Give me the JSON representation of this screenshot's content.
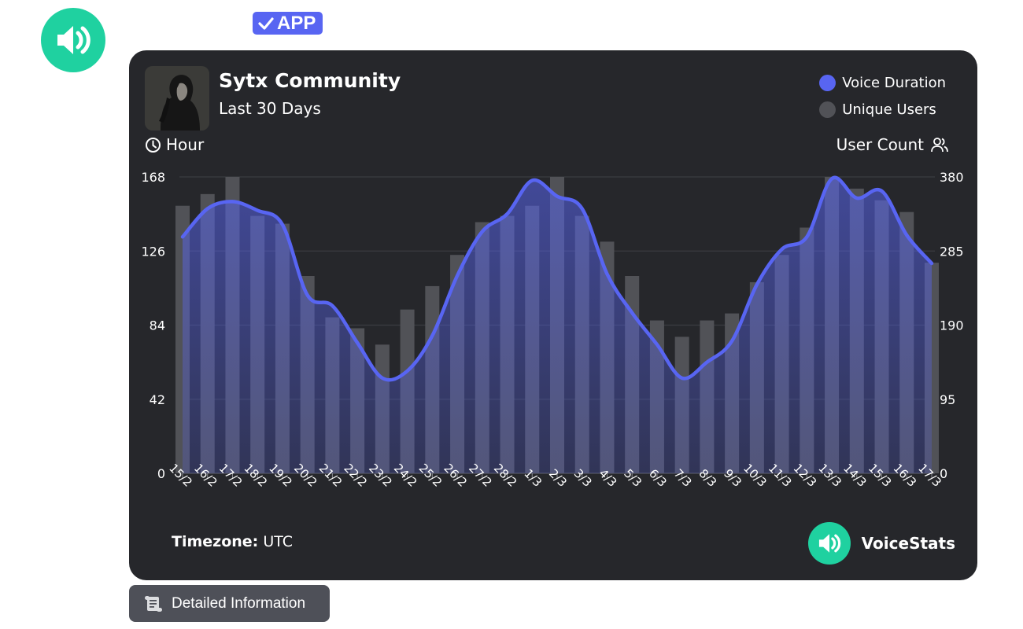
{
  "message": {
    "app_badge": "APP"
  },
  "card": {
    "title": "Sytx Community",
    "subtitle": "Last 30 Days",
    "timezone_label": "Timezone:",
    "timezone_value": "UTC",
    "brand_name": "VoiceStats"
  },
  "actions": {
    "detail_button": "Detailed Information"
  },
  "colors": {
    "voice": "#5865f2",
    "users": "#515257",
    "brand": "#1fd1a0",
    "card_bg": "#26272b"
  },
  "chart_data": {
    "type": "bar",
    "categories": [
      "15/2",
      "16/2",
      "17/2",
      "18/2",
      "19/2",
      "20/2",
      "21/2",
      "22/2",
      "23/2",
      "24/2",
      "25/2",
      "26/2",
      "27/2",
      "28/2",
      "1/3",
      "2/3",
      "3/3",
      "4/3",
      "5/3",
      "6/3",
      "7/3",
      "8/3",
      "9/3",
      "10/3",
      "11/3",
      "12/3",
      "13/3",
      "14/3",
      "15/3",
      "16/3",
      "17/3"
    ],
    "y_left_label": "Hour",
    "y_right_label": "User Count",
    "y_left_ticks": [
      0,
      42,
      84,
      126,
      168
    ],
    "y_right_ticks": [
      0,
      95,
      190,
      285,
      380
    ],
    "ylim_left": [
      0,
      168
    ],
    "ylim_right": [
      0,
      380
    ],
    "grid": true,
    "legend_position": "top-right",
    "series": [
      {
        "name": "Voice Duration",
        "type": "line",
        "axis": "left",
        "color": "#5865f2",
        "values": [
          134,
          150,
          154,
          149,
          141,
          101,
          95,
          74,
          54,
          58,
          78,
          112,
          137,
          147,
          166,
          157,
          150,
          113,
          91,
          73,
          54,
          63,
          75,
          107,
          127,
          134,
          167,
          156,
          160,
          135,
          119
        ]
      },
      {
        "name": "Unique Users",
        "type": "bar",
        "axis": "right",
        "color": "#515257",
        "values": [
          343,
          358,
          380,
          330,
          320,
          253,
          200,
          186,
          165,
          210,
          240,
          280,
          322,
          330,
          343,
          380,
          330,
          297,
          253,
          196,
          175,
          196,
          205,
          245,
          280,
          315,
          380,
          365,
          350,
          335,
          270
        ]
      }
    ]
  }
}
